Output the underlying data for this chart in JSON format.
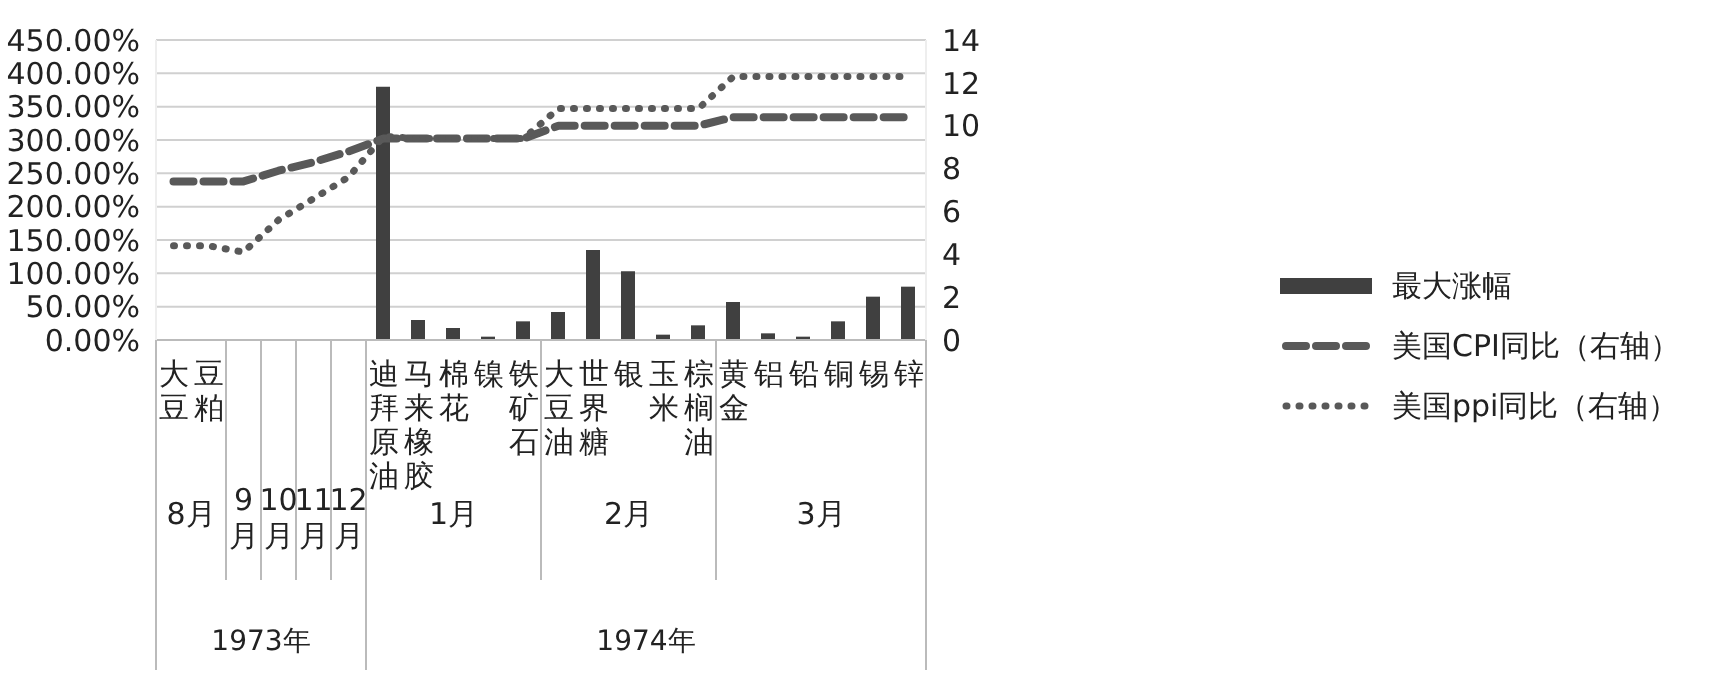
{
  "chart_data": {
    "type": "bar",
    "categories": [
      "大豆",
      "豆粕",
      null,
      null,
      null,
      null,
      "迪拜原油",
      "马来橡胶",
      "棉花",
      "镍",
      "铁矿石",
      "大豆油",
      "世界糖",
      "银",
      "玉米",
      "棕榈油",
      "黄金",
      "铝",
      "铅",
      "铜",
      "锡",
      "锌"
    ],
    "series": [
      {
        "name": "最大涨幅",
        "color": "#404040",
        "values": [
          null,
          null,
          null,
          null,
          null,
          null,
          380,
          30,
          18,
          5,
          28,
          42,
          135,
          103,
          8,
          22,
          57,
          10,
          5,
          28,
          65,
          80
        ]
      },
      {
        "name": "美国CPI同比（右轴）",
        "type": "line",
        "axis": "y2",
        "line_style": "dashed",
        "color": "#595959",
        "values": [
          7.4,
          7.4,
          7.4,
          7.9,
          8.3,
          8.8,
          9.4,
          9.4,
          9.4,
          9.4,
          9.4,
          10.0,
          10.0,
          10.0,
          10.0,
          10.0,
          10.4,
          10.4,
          10.4,
          10.4,
          10.4,
          10.4
        ]
      },
      {
        "name": "美国ppi同比（右轴）",
        "type": "line",
        "axis": "y2",
        "line_style": "dotted",
        "color": "#595959",
        "values": [
          4.4,
          4.4,
          4.1,
          5.6,
          6.6,
          7.6,
          9.5,
          9.4,
          9.4,
          9.4,
          9.4,
          10.8,
          10.8,
          10.8,
          10.8,
          10.8,
          12.3,
          12.3,
          12.3,
          12.3,
          12.3,
          12.3
        ]
      }
    ],
    "annotations": [
      "8月",
      "9月",
      "10月",
      "11月",
      "12月",
      "1月",
      "2月",
      "3月",
      "1973年",
      "1974年"
    ],
    "ylim": [
      0,
      450
    ],
    "yticks": [
      {
        "value": 0,
        "label": "0.00%"
      },
      {
        "value": 50,
        "label": "50.00%"
      },
      {
        "value": 100,
        "label": "100.00%"
      },
      {
        "value": 150,
        "label": "150.00%"
      },
      {
        "value": 200,
        "label": "200.00%"
      },
      {
        "value": 250,
        "label": "250.00%"
      },
      {
        "value": 300,
        "label": "300.00%"
      },
      {
        "value": 350,
        "label": "350.00%"
      },
      {
        "value": 400,
        "label": "400.00%"
      },
      {
        "value": 450,
        "label": "450.00%"
      }
    ],
    "y2lim": [
      0,
      14
    ],
    "y2ticks": [
      0,
      2,
      4,
      6,
      8,
      10,
      12,
      14
    ],
    "grid": "y",
    "legend": "right",
    "marker": "none"
  }
}
